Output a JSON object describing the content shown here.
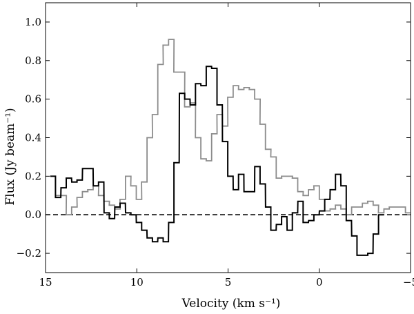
{
  "chart_data": {
    "type": "line",
    "xlabel": "Velocity (km s⁻¹)",
    "ylabel": "Flux (Jy beam⁻¹)",
    "xlim": [
      15,
      -5
    ],
    "ylim": [
      -0.3,
      1.1
    ],
    "x_ticks": [
      15,
      10,
      5,
      0,
      -5
    ],
    "x_tick_labels": [
      "15",
      "10",
      "5",
      "0",
      "−5"
    ],
    "y_ticks": [
      -0.2,
      0.0,
      0.2,
      0.4,
      0.6,
      0.8,
      1.0
    ],
    "y_tick_labels": [
      "−0.2",
      "0.0",
      "0.2",
      "0.4",
      "0.6",
      "0.8",
      "1.0"
    ],
    "reference_line": {
      "y": 0.0,
      "style": "dashed",
      "color": "#000000"
    },
    "series": [
      {
        "name": "black spectrum",
        "color": "#000000",
        "stroke": "step",
        "x": [
          14.6,
          14.31,
          14.01,
          13.72,
          13.42,
          13.13,
          12.83,
          12.54,
          12.24,
          11.95,
          11.65,
          11.36,
          11.06,
          10.77,
          10.47,
          10.18,
          9.88,
          9.59,
          9.29,
          9.0,
          8.7,
          8.41,
          8.11,
          7.82,
          7.52,
          7.23,
          6.93,
          6.64,
          6.34,
          6.05,
          5.75,
          5.46,
          5.16,
          4.87,
          4.57,
          4.28,
          3.98,
          3.69,
          3.39,
          3.1,
          2.8,
          2.51,
          2.21,
          1.92,
          1.62,
          1.33,
          1.03,
          0.74,
          0.44,
          0.15,
          -0.15,
          -0.44,
          -0.74,
          -1.03,
          -1.33,
          -1.62,
          -1.92,
          -2.21,
          -2.51,
          -2.8,
          -3.1,
          -3.39
        ],
        "y": [
          0.2,
          0.09,
          0.14,
          0.19,
          0.17,
          0.18,
          0.24,
          0.24,
          0.15,
          0.17,
          0.01,
          -0.02,
          0.04,
          0.06,
          0.01,
          0.0,
          -0.04,
          -0.08,
          -0.12,
          -0.14,
          -0.12,
          -0.14,
          -0.04,
          0.27,
          0.63,
          0.6,
          0.57,
          0.68,
          0.67,
          0.77,
          0.76,
          0.57,
          0.38,
          0.2,
          0.13,
          0.21,
          0.12,
          0.12,
          0.25,
          0.16,
          0.04,
          -0.08,
          -0.05,
          -0.01,
          -0.08,
          0.01,
          0.07,
          -0.04,
          -0.03,
          0.0,
          0.02,
          0.08,
          0.13,
          0.21,
          0.15,
          -0.03,
          -0.11,
          -0.21,
          -0.21,
          -0.2,
          -0.1,
          0.0
        ]
      },
      {
        "name": "grey spectrum",
        "color": "#8c8c8c",
        "stroke": "step",
        "x": [
          14.31,
          14.01,
          13.72,
          13.42,
          13.13,
          12.83,
          12.54,
          12.24,
          11.95,
          11.65,
          11.36,
          11.06,
          10.77,
          10.47,
          10.18,
          9.88,
          9.59,
          9.29,
          9.0,
          8.7,
          8.41,
          8.11,
          7.82,
          7.52,
          7.23,
          6.93,
          6.64,
          6.34,
          6.05,
          5.75,
          5.46,
          5.16,
          4.87,
          4.57,
          4.28,
          3.98,
          3.69,
          3.39,
          3.1,
          2.8,
          2.51,
          2.21,
          1.92,
          1.62,
          1.33,
          1.03,
          0.74,
          0.44,
          0.15,
          -0.15,
          -0.44,
          -0.74,
          -1.03,
          -1.33,
          -1.62,
          -1.92,
          -2.21,
          -2.51,
          -2.8,
          -3.1,
          -3.39,
          -3.69,
          -3.98,
          -4.28,
          -4.57,
          -4.87
        ],
        "y": [
          0.1,
          0.1,
          0.0,
          0.04,
          0.09,
          0.12,
          0.13,
          0.15,
          0.1,
          0.07,
          0.05,
          0.03,
          0.08,
          0.2,
          0.15,
          0.08,
          0.17,
          0.4,
          0.52,
          0.78,
          0.88,
          0.91,
          0.74,
          0.74,
          0.56,
          0.58,
          0.4,
          0.29,
          0.28,
          0.42,
          0.52,
          0.46,
          0.61,
          0.67,
          0.65,
          0.66,
          0.65,
          0.6,
          0.47,
          0.34,
          0.3,
          0.19,
          0.2,
          0.2,
          0.19,
          0.12,
          0.1,
          0.13,
          0.15,
          0.08,
          0.02,
          0.03,
          0.05,
          0.03,
          0.0,
          0.04,
          0.04,
          0.06,
          0.07,
          0.05,
          0.01,
          0.03,
          0.04,
          0.04,
          0.04,
          0.01
        ]
      }
    ]
  }
}
